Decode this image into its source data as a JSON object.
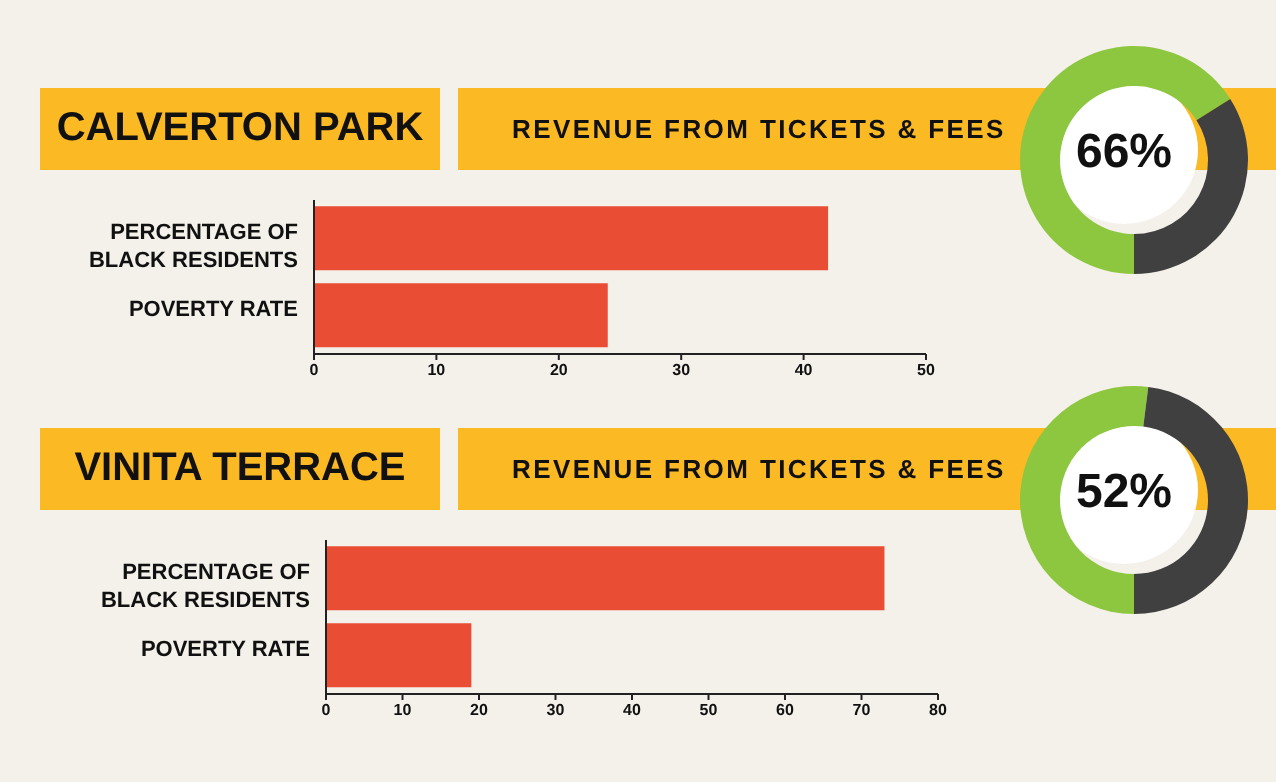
{
  "chart_data": [
    {
      "type": "bar",
      "title": "CALVERTON PARK",
      "categories": [
        "PERCENTAGE OF BLACK RESIDENTS",
        "POVERTY RATE"
      ],
      "values": [
        42,
        24
      ],
      "color": "#e94e35",
      "orientation": "horizontal",
      "xlim": [
        0,
        50
      ],
      "xticks": [
        0,
        10,
        20,
        30,
        40,
        50
      ]
    },
    {
      "type": "donut",
      "title": "REVENUE FROM TICKETS & FEES",
      "categories": [
        null,
        null
      ],
      "values": [
        66,
        34
      ],
      "colors": [
        "#8dc63f",
        "#404040"
      ],
      "value_labels": [
        "66%",
        null
      ]
    },
    {
      "type": "bar",
      "title": "VINITA TERRACE",
      "categories": [
        "PERCENTAGE OF BLACK RESIDENTS",
        "POVERTY RATE"
      ],
      "values": [
        73,
        19
      ],
      "color": "#e94e35",
      "orientation": "horizontal",
      "xlim": [
        0,
        80
      ],
      "xticks": [
        0,
        10,
        20,
        30,
        40,
        50,
        60,
        70,
        80
      ]
    },
    {
      "type": "donut",
      "title": "REVENUE FROM TICKETS & FEES",
      "categories": [
        null,
        null
      ],
      "values": [
        52,
        48
      ],
      "colors": [
        "#8dc63f",
        "#404040"
      ],
      "value_labels": [
        "52%",
        null
      ]
    }
  ]
}
